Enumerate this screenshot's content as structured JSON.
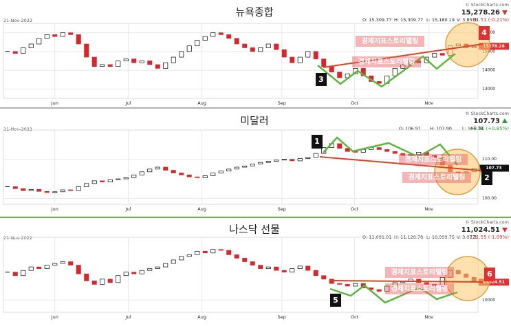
{
  "watermark": "경제지표스토리텔링",
  "chart_data": [
    {
      "type": "candlestick",
      "title": "뉴욕종합",
      "date": "21-Nov-2022",
      "copyright": "© StockCharts.com",
      "open": "O: 15,309.77",
      "high": "H: 15,309.77",
      "low": "L: 15,180.19",
      "volume": "V: 3.851b",
      "last": "15,278.26",
      "change": "-31.51 (-0.21%)",
      "direction": "down",
      "change_color": "#e03030",
      "last_box_color": "#e03030",
      "annotations": [
        "3",
        "4"
      ],
      "values": [
        15000,
        14900,
        15200,
        15400,
        15700,
        15900,
        15800,
        16000,
        15900,
        15400,
        14700,
        14200,
        14300,
        14200,
        14500,
        14600,
        14400,
        14500,
        14300,
        14100,
        14400,
        14700,
        15000,
        15300,
        15600,
        15800,
        16000,
        15900,
        15700,
        15400,
        15200,
        15000,
        15200,
        15400,
        15100,
        14700,
        14400,
        14700,
        15000,
        14600,
        14200,
        13900,
        13600,
        13800,
        14100,
        13700,
        13400,
        13300,
        13700,
        14100,
        14300,
        14500,
        14400,
        14700,
        14900,
        14800,
        15300,
        15400,
        15200,
        15278.26
      ],
      "ylim": [
        12500,
        16500
      ],
      "yticks": [
        13000,
        14000,
        15000,
        16000
      ],
      "xlim": [
        -0.5,
        59.5
      ],
      "xticks": [
        {
          "value": 6,
          "label": "Jun"
        },
        {
          "value": 15.3,
          "label": "Jul"
        },
        {
          "value": 24.6,
          "label": "Aug"
        },
        {
          "value": 34.7,
          "label": "Sep"
        },
        {
          "value": 43.9,
          "label": "Oct"
        },
        {
          "value": 53.3,
          "label": "Nov"
        }
      ],
      "grid": true,
      "up_color": "#ffffff",
      "down_color": "#d9262b"
    },
    {
      "type": "candlestick",
      "title": "미달러",
      "date": "21-Nov-2022",
      "copyright": "© StockCharts.com",
      "open": "O: 106.91",
      "high": "H: 107.90",
      "low": "L: 106.78",
      "last": "107.73",
      "change": "+0.91 (+0.85%)",
      "direction": "up",
      "change_color": "#2a9d2a",
      "last_box_color": "#111111",
      "annotations": [
        "1",
        "2"
      ],
      "values": [
        103,
        102.5,
        102,
        102.3,
        101.8,
        101.5,
        101.7,
        102.2,
        102,
        103,
        103.8,
        104.5,
        104.2,
        104.8,
        105,
        105.3,
        106,
        106.8,
        107.5,
        108,
        107.2,
        106.5,
        106,
        105.5,
        105.3,
        105.8,
        106.5,
        107,
        107.5,
        108,
        108.3,
        108.8,
        109.2,
        109.5,
        109.8,
        110,
        109.6,
        110.2,
        110.5,
        111.5,
        113,
        114,
        112.8,
        112,
        111.8,
        112.5,
        113,
        112.5,
        112,
        111.5,
        111,
        111.2,
        111.8,
        111,
        110.5,
        108.5,
        106.8,
        106.5,
        106.8,
        107.73
      ],
      "ylim": [
        98.5,
        117.5
      ],
      "yticks": [
        {
          "value": 100,
          "label": "100.00"
        },
        {
          "value": 110,
          "label": "110.00"
        }
      ],
      "xlim": [
        -0.5,
        59.5
      ],
      "xticks": [
        {
          "value": 6,
          "label": "Jun"
        },
        {
          "value": 15.3,
          "label": "Jul"
        },
        {
          "value": 24.6,
          "label": "Aug"
        },
        {
          "value": 34.7,
          "label": "Sep"
        },
        {
          "value": 43.9,
          "label": "Oct"
        },
        {
          "value": 53.3,
          "label": "Nov"
        }
      ],
      "grid": true,
      "up_color": "#ffffff",
      "down_color": "#d9262b"
    },
    {
      "type": "candlestick",
      "title": "나스닥 선물",
      "date": "21-Nov-2022",
      "copyright": "© StockCharts.com",
      "open": "O: 11,091.01",
      "high": "H: 11,128.78",
      "low": "L: 10,999.75",
      "volume": "V: 3.977b",
      "last": "11,024.51",
      "change": "-121.55 (-1.09%)",
      "direction": "down",
      "change_color": "#e03030",
      "last_box_color": "#e03030",
      "annotations": [
        "5",
        "6"
      ],
      "values": [
        11600,
        11400,
        11700,
        11900,
        11800,
        12000,
        12100,
        12200,
        12000,
        11500,
        11100,
        10900,
        11200,
        11000,
        11400,
        11600,
        11500,
        11700,
        11800,
        11900,
        12100,
        12300,
        12500,
        12600,
        12800,
        12700,
        12900,
        12850,
        12600,
        12400,
        12200,
        12000,
        11800,
        11900,
        11700,
        11600,
        11800,
        11950,
        11700,
        11400,
        11200,
        10950,
        10900,
        10800,
        10950,
        10700,
        10600,
        10500,
        10800,
        11000,
        11100,
        11200,
        11000,
        10900,
        10800,
        11300,
        11700,
        11500,
        11300,
        11024.51
      ],
      "ylim": [
        9300,
        13600
      ],
      "yticks": [
        10000
      ],
      "xlim": [
        -0.5,
        59.5
      ],
      "xticks": [
        {
          "value": 6,
          "label": "Jun"
        },
        {
          "value": 15.3,
          "label": "Jul"
        },
        {
          "value": 24.6,
          "label": "Aug"
        },
        {
          "value": 34.7,
          "label": "Sep"
        },
        {
          "value": 43.9,
          "label": "Oct"
        },
        {
          "value": 53.3,
          "label": "Nov"
        }
      ],
      "grid": true,
      "up_color": "#ffffff",
      "down_color": "#d9262b"
    }
  ]
}
